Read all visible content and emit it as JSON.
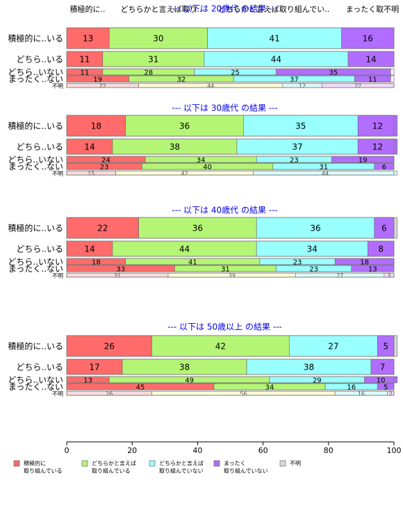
{
  "chart_data": {
    "type": "bar",
    "orientation": "horizontal",
    "stacked": true,
    "xlim": [
      0,
      100
    ],
    "xticks": [
      "0",
      "20",
      "40",
      "60",
      "80",
      "100"
    ],
    "category_header": [
      "積極的に..",
      "どちらかと言えば取り..",
      "どちらかと言えば取り組んでい..",
      "まったく取不明"
    ],
    "legend_position": "bottom",
    "legend": [
      {
        "label": "積極的に\n取り組んでいる",
        "color": "#ff6b6b"
      },
      {
        "label": "どちらかと言えば\n取り組んでいる",
        "color": "#b5f575"
      },
      {
        "label": "どちらかと言えば\n取り組んでいない",
        "color": "#99ffff"
      },
      {
        "label": "まったく\n取り組んでいない",
        "color": "#b16dff"
      },
      {
        "label": "不明",
        "color": "#d9d9d9"
      }
    ],
    "panels": [
      {
        "title": "--- 以下は 20歳代 の結果 ---",
        "rows": [
          {
            "label": "積極的に..いる",
            "values": [
              13,
              30,
              41,
              16,
              0
            ],
            "weight": 1.0
          },
          {
            "label": "どちら..いる",
            "values": [
              11,
              31,
              44,
              14,
              0
            ],
            "weight": 0.75
          },
          {
            "label": "どちら..いない",
            "values": [
              11,
              28,
              25,
              35,
              0
            ],
            "weight": 0.3
          },
          {
            "label": "まったく..ない",
            "values": [
              19,
              32,
              37,
              11,
              0
            ],
            "weight": 0.3
          },
          {
            "label": "不明",
            "values": [
              22,
              44,
              12,
              22,
              0
            ],
            "weight": 0.15,
            "faded": true
          }
        ]
      },
      {
        "title": "--- 以下は 30歳代 の結果 ---",
        "rows": [
          {
            "label": "積極的に..いる",
            "values": [
              18,
              36,
              35,
              12,
              0
            ],
            "weight": 1.0
          },
          {
            "label": "どちら..いる",
            "values": [
              14,
              38,
              37,
              12,
              0
            ],
            "weight": 0.75
          },
          {
            "label": "どちら..いない",
            "values": [
              24,
              34,
              23,
              19,
              0
            ],
            "weight": 0.3
          },
          {
            "label": "まったく..ない",
            "values": [
              23,
              40,
              31,
              6,
              0
            ],
            "weight": 0.3
          },
          {
            "label": "不明",
            "values": [
              15,
              42,
              44,
              0,
              0
            ],
            "weight": 0.15,
            "faded": true
          }
        ]
      },
      {
        "title": "--- 以下は 40歳代 の結果 ---",
        "rows": [
          {
            "label": "積極的に..いる",
            "values": [
              22,
              36,
              36,
              6,
              1
            ],
            "weight": 1.0
          },
          {
            "label": "どちら..いる",
            "values": [
              14,
              44,
              34,
              8,
              0
            ],
            "weight": 0.75
          },
          {
            "label": "どちら..いない",
            "values": [
              18,
              41,
              23,
              18,
              0
            ],
            "weight": 0.3
          },
          {
            "label": "まったく..ない",
            "values": [
              33,
              31,
              23,
              13,
              0
            ],
            "weight": 0.3
          },
          {
            "label": "不明",
            "values": [
              31,
              39,
              27,
              3,
              0
            ],
            "weight": 0.15,
            "faded": true
          }
        ]
      },
      {
        "title": "--- 以下は 50歳以上 の結果 ---",
        "rows": [
          {
            "label": "積極的に..いる",
            "values": [
              26,
              42,
              27,
              5,
              1
            ],
            "weight": 1.0
          },
          {
            "label": "どちら..いる",
            "values": [
              17,
              38,
              38,
              7,
              0
            ],
            "weight": 0.75
          },
          {
            "label": "どちら..いない",
            "values": [
              13,
              49,
              29,
              10,
              0
            ],
            "weight": 0.3
          },
          {
            "label": "まったく..ない",
            "values": [
              45,
              34,
              16,
              5,
              0
            ],
            "weight": 0.3
          },
          {
            "label": "不明",
            "values": [
              26,
              56,
              16,
              2,
              0
            ],
            "weight": 0.15,
            "faded": true
          }
        ]
      }
    ]
  }
}
